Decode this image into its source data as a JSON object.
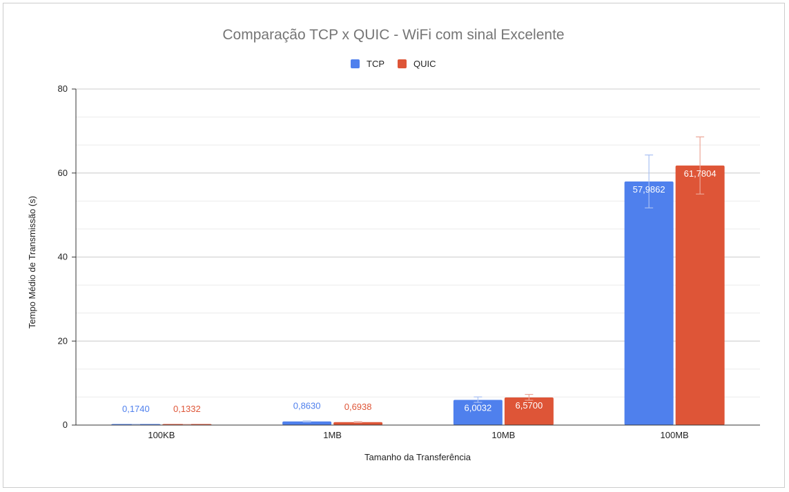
{
  "chart_data": {
    "type": "bar",
    "title": "Comparação TCP x QUIC - WiFi com sinal Excelente",
    "xlabel": "Tamanho da Transferência",
    "ylabel": "Tempo Médio de Transmissão (s)",
    "categories": [
      "100KB",
      "1MB",
      "10MB",
      "100MB"
    ],
    "ylim": [
      0,
      80
    ],
    "yticks": [
      0,
      20,
      40,
      60,
      80
    ],
    "grid": true,
    "legend_position": "top-center",
    "series": [
      {
        "name": "TCP",
        "color": "#4f80ed",
        "values": [
          0.174,
          0.863,
          6.0032,
          57.9862
        ],
        "labels": [
          "0,1740",
          "0,8630",
          "6,0032",
          "57,9862"
        ],
        "error_low": [
          0.17,
          0.75,
          5.4,
          51.7
        ],
        "error_high": [
          0.18,
          0.98,
          6.7,
          64.3
        ]
      },
      {
        "name": "QUIC",
        "color": "#de5537",
        "values": [
          0.1332,
          0.6938,
          6.57,
          61.7804
        ],
        "labels": [
          "0,1332",
          "0,6938",
          "6,5700",
          "61,7804"
        ],
        "error_low": [
          0.13,
          0.6,
          5.9,
          55.0
        ],
        "error_high": [
          0.14,
          0.8,
          7.3,
          68.6
        ]
      }
    ]
  }
}
